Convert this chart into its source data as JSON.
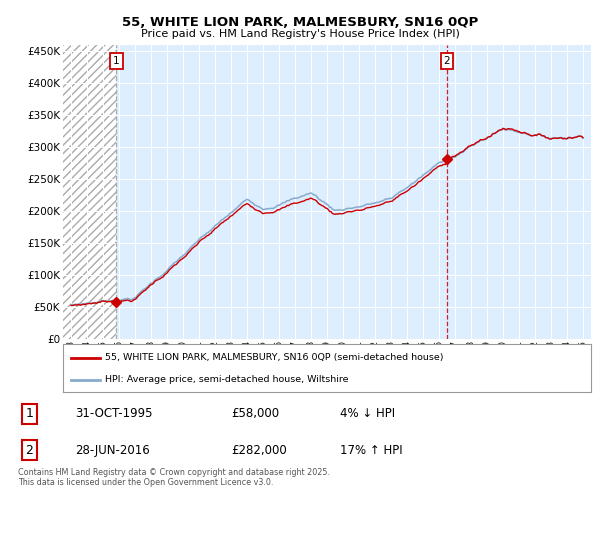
{
  "title": "55, WHITE LION PARK, MALMESBURY, SN16 0QP",
  "subtitle": "Price paid vs. HM Land Registry's House Price Index (HPI)",
  "sale1_date": "31-OCT-1995",
  "sale1_price": 58000,
  "sale1_hpi_diff": "4% ↓ HPI",
  "sale2_date": "28-JUN-2016",
  "sale2_price": 282000,
  "sale2_hpi_diff": "17% ↑ HPI",
  "legend_line1": "55, WHITE LION PARK, MALMESBURY, SN16 0QP (semi-detached house)",
  "legend_line2": "HPI: Average price, semi-detached house, Wiltshire",
  "footer": "Contains HM Land Registry data © Crown copyright and database right 2025.\nThis data is licensed under the Open Government Licence v3.0.",
  "red_color": "#cc0000",
  "blue_color": "#88aacc",
  "bg_chart": "#ddeeff",
  "ylim_max": 460000,
  "ytick_vals": [
    0,
    50000,
    100000,
    150000,
    200000,
    250000,
    300000,
    350000,
    400000,
    450000
  ],
  "year_start": 1993,
  "year_end": 2025,
  "sale1_year": 1995.83,
  "sale2_year": 2016.5
}
